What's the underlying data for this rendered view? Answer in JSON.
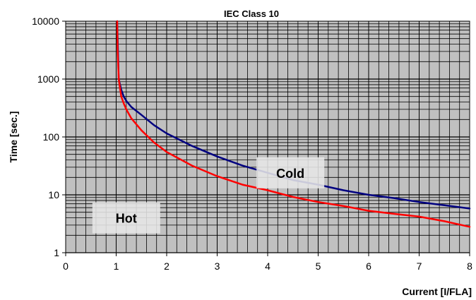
{
  "chart_data": {
    "type": "line",
    "title": "IEC Class 10",
    "xlabel": "Current [I/FLA]",
    "ylabel": "Time [sec.]",
    "xlim": [
      0,
      8
    ],
    "ylim": [
      1,
      10000
    ],
    "yscale": "log",
    "grid": true,
    "x_ticks": [
      "0",
      "1",
      "2",
      "3",
      "4",
      "5",
      "6",
      "7",
      "8"
    ],
    "y_ticks": [
      "1",
      "10",
      "100",
      "1000",
      "10000"
    ],
    "series": [
      {
        "name": "Cold",
        "color": "#000080",
        "x": [
          1.02,
          1.05,
          1.1,
          1.15,
          1.2,
          1.3,
          1.5,
          1.75,
          2.0,
          2.5,
          3.0,
          3.5,
          4.0,
          4.5,
          5.0,
          5.5,
          6.0,
          6.5,
          7.0,
          7.5,
          8.0
        ],
        "y": [
          10000,
          1000,
          650,
          500,
          420,
          330,
          240,
          160,
          115,
          70,
          46,
          32,
          24,
          18,
          15,
          12,
          10,
          8.8,
          7.5,
          6.6,
          5.8
        ]
      },
      {
        "name": "Hot",
        "color": "#ff0000",
        "x": [
          1.02,
          1.03,
          1.05,
          1.1,
          1.15,
          1.2,
          1.3,
          1.5,
          1.75,
          2.0,
          2.5,
          3.0,
          3.5,
          4.0,
          4.5,
          5.0,
          5.5,
          6.0,
          6.5,
          7.0,
          7.5,
          8.0
        ],
        "y": [
          10000,
          3000,
          1000,
          500,
          380,
          300,
          210,
          130,
          80,
          55,
          32,
          21,
          15,
          12,
          9.2,
          7.5,
          6.4,
          5.3,
          4.7,
          4.2,
          3.5,
          2.8
        ]
      }
    ],
    "annotations": [
      {
        "text": "Cold",
        "x": 4.45,
        "y": 24
      },
      {
        "text": "Hot",
        "x": 1.2,
        "y": 4
      }
    ]
  }
}
